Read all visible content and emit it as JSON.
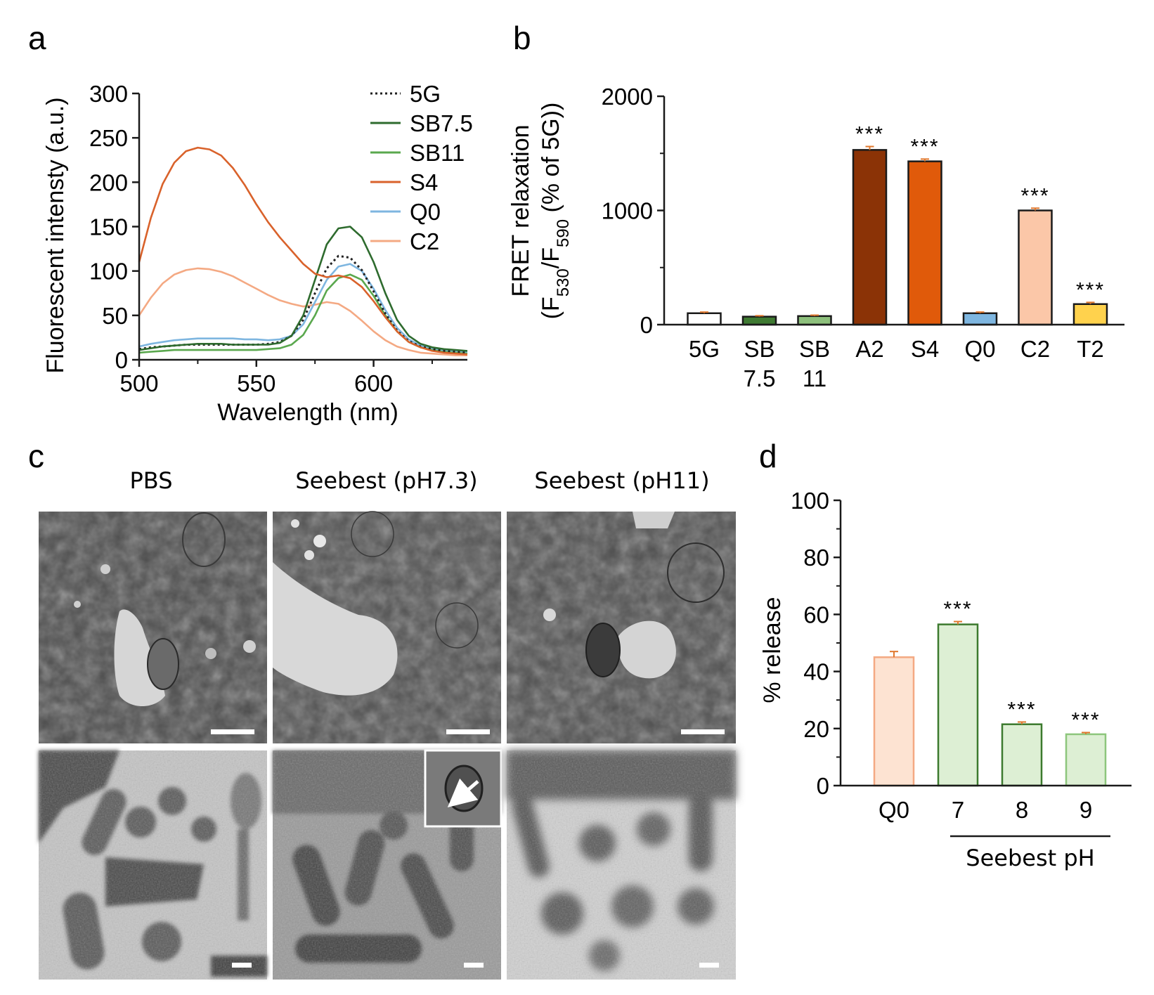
{
  "panels": {
    "a": "a",
    "b": "b",
    "c": "c",
    "d": "d"
  },
  "chart_data": [
    {
      "id": "a",
      "type": "line",
      "xlabel": "Wavelength (nm)",
      "ylabel": "Fluorescent intensty (a.u.)",
      "xlim": [
        500,
        640
      ],
      "ylim": [
        0,
        300
      ],
      "xticks": [
        500,
        550,
        600
      ],
      "yticks": [
        0,
        50,
        100,
        150,
        200,
        250,
        300
      ],
      "legend_position": "top-right",
      "x": [
        500,
        505,
        510,
        515,
        520,
        525,
        530,
        535,
        540,
        545,
        550,
        555,
        560,
        565,
        570,
        575,
        580,
        585,
        590,
        595,
        600,
        605,
        610,
        615,
        620,
        625,
        630,
        635,
        640
      ],
      "series": [
        {
          "name": "5G",
          "color": "#222222",
          "dash": "dotted",
          "values": [
            12,
            14,
            15,
            16,
            17,
            17,
            17,
            17,
            17,
            17,
            17,
            18,
            20,
            27,
            45,
            75,
            103,
            117,
            115,
            101,
            77,
            52,
            33,
            21,
            15,
            12,
            10,
            9,
            8
          ]
        },
        {
          "name": "SB7.5",
          "color": "#2e6b2e",
          "dash": "solid",
          "values": [
            11,
            13,
            15,
            16,
            17,
            18,
            18,
            18,
            17,
            17,
            17,
            17,
            19,
            27,
            50,
            90,
            130,
            148,
            150,
            138,
            110,
            75,
            45,
            27,
            18,
            14,
            12,
            11,
            10
          ]
        },
        {
          "name": "SB11",
          "color": "#5aa84e",
          "dash": "solid",
          "values": [
            8,
            9,
            10,
            11,
            11,
            11,
            11,
            11,
            11,
            11,
            11,
            12,
            13,
            17,
            28,
            50,
            78,
            92,
            96,
            90,
            72,
            50,
            32,
            20,
            14,
            11,
            9,
            8,
            7
          ]
        },
        {
          "name": "S4",
          "color": "#d9622b",
          "dash": "solid",
          "values": [
            110,
            160,
            198,
            222,
            235,
            239,
            237,
            230,
            216,
            197,
            175,
            155,
            138,
            123,
            108,
            97,
            93,
            95,
            92,
            82,
            66,
            48,
            32,
            20,
            14,
            10,
            8,
            7,
            6
          ]
        },
        {
          "name": "Q0",
          "color": "#7eb6e0",
          "dash": "solid",
          "values": [
            15,
            18,
            20,
            22,
            23,
            24,
            24,
            24,
            24,
            23,
            23,
            22,
            23,
            27,
            40,
            65,
            90,
            105,
            108,
            100,
            80,
            56,
            36,
            23,
            16,
            13,
            11,
            10,
            9
          ]
        },
        {
          "name": "C2",
          "color": "#f4a983",
          "dash": "solid",
          "values": [
            50,
            70,
            86,
            96,
            101,
            103,
            102,
            99,
            94,
            87,
            80,
            73,
            67,
            63,
            60,
            62,
            65,
            63,
            55,
            44,
            32,
            22,
            15,
            11,
            8,
            7,
            6,
            5,
            5
          ]
        }
      ]
    },
    {
      "id": "b",
      "type": "bar",
      "ylabel_line1": "FRET relaxation",
      "ylabel_line2_parts": [
        "(F",
        "530",
        "/F",
        "590",
        " (% of 5G))"
      ],
      "ylim": [
        0,
        2000
      ],
      "yticks": [
        0,
        1000,
        2000
      ],
      "categories": [
        [
          "5G"
        ],
        [
          "SB",
          "7.5"
        ],
        [
          "SB",
          "11"
        ],
        [
          "A2"
        ],
        [
          "S4"
        ],
        [
          "Q0"
        ],
        [
          "C2"
        ],
        [
          "T2"
        ]
      ],
      "values": [
        100,
        70,
        75,
        1530,
        1430,
        100,
        1000,
        180
      ],
      "errors": [
        10,
        8,
        8,
        30,
        20,
        10,
        20,
        15
      ],
      "fills": [
        "#ffffff",
        "#3f7a32",
        "#8dc07c",
        "#8b3306",
        "#e05a0a",
        "#7eb6e0",
        "#fbc7a8",
        "#ffd24d"
      ],
      "annotations": [
        "",
        "",
        "",
        "***",
        "***",
        "",
        "***",
        "***"
      ],
      "error_color": "#e0782e"
    },
    {
      "id": "d",
      "type": "bar",
      "ylabel": "% release",
      "ylim": [
        0,
        100
      ],
      "yticks": [
        0,
        20,
        40,
        60,
        80,
        100
      ],
      "categories": [
        "Q0",
        "7",
        "8",
        "9"
      ],
      "values": [
        45,
        56.5,
        21.5,
        18
      ],
      "errors": [
        2.0,
        1.0,
        0.8,
        0.6
      ],
      "fills": [
        "#fde3d2",
        "#ddefd4",
        "#ddefd4",
        "#ddefd4"
      ],
      "strokes": [
        "#f4a983",
        "#3c7a2e",
        "#3c7a2e",
        "#8dc67c"
      ],
      "annotations": [
        "",
        "***",
        "***",
        "***"
      ],
      "group_label": "Seebest pH",
      "error_color": "#e0782e"
    }
  ],
  "micrographs": {
    "columns": [
      "PBS",
      "Seebest (pH7.3)",
      "Seebest (pH11)"
    ]
  }
}
